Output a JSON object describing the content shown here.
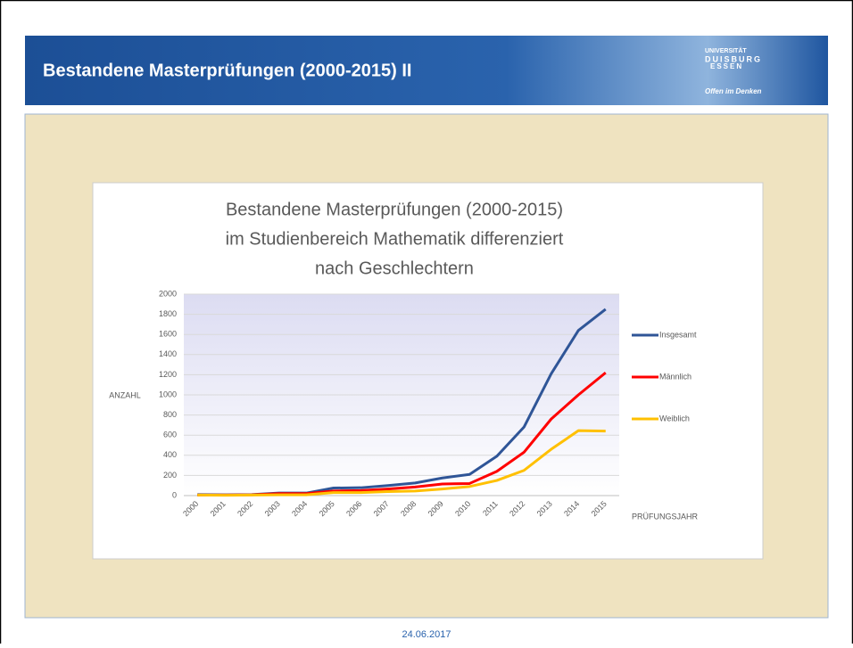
{
  "header": {
    "title": "Bestandene Masterprüfungen (2000-2015) II",
    "logo_lines": [
      "UNIVERSITÄT",
      "DUISBURG",
      "ESSEN"
    ],
    "logo_motto": "Offen im Denken"
  },
  "footer": {
    "date": "24.06.2017"
  },
  "chart_data": {
    "type": "line",
    "title": [
      "Bestandene Masterprüfungen (2000-2015)",
      "im Studienbereich Mathematik differenziert",
      "nach Geschlechtern"
    ],
    "y_label": "ANZAHL",
    "x_label": "PRÜFUNGSJAHR",
    "categories": [
      "2000",
      "2001",
      "2002",
      "2003",
      "2004",
      "2005",
      "2006",
      "2007",
      "2008",
      "2009",
      "2010",
      "2011",
      "2012",
      "2013",
      "2014",
      "2015"
    ],
    "series": [
      {
        "name": "Insgesamt",
        "color": "#2f5597",
        "values": [
          10,
          8,
          10,
          25,
          25,
          75,
          78,
          100,
          125,
          175,
          210,
          390,
          680,
          1210,
          1640,
          1850
        ]
      },
      {
        "name": "Männlich",
        "color": "#ff0000",
        "values": [
          5,
          5,
          8,
          20,
          20,
          45,
          50,
          65,
          85,
          115,
          120,
          240,
          430,
          760,
          1000,
          1220
        ]
      },
      {
        "name": "Weiblich",
        "color": "#ffc000",
        "values": [
          5,
          3,
          5,
          8,
          8,
          30,
          30,
          40,
          45,
          65,
          90,
          150,
          250,
          460,
          645,
          640
        ]
      }
    ],
    "ylim": [
      0,
      2000
    ],
    "yticks": [
      0,
      200,
      400,
      600,
      800,
      1000,
      1200,
      1400,
      1600,
      1800,
      2000
    ],
    "grid": true,
    "legend": "right"
  }
}
